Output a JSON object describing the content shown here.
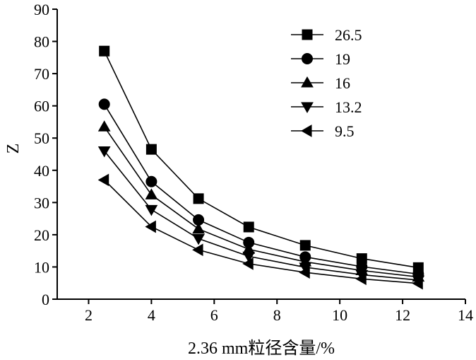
{
  "chart_data": {
    "type": "line",
    "title": "",
    "xlabel": "2.36 mm粒径含量/%",
    "ylabel": "Z",
    "xlim": [
      1,
      14
    ],
    "ylim": [
      0,
      90
    ],
    "xticks": [
      2,
      4,
      6,
      8,
      10,
      12,
      14
    ],
    "yticks": [
      0,
      10,
      20,
      30,
      40,
      50,
      60,
      70,
      80,
      90
    ],
    "grid": false,
    "legend_position": "top-right",
    "x": [
      2.5,
      4.0,
      5.5,
      7.1,
      8.9,
      10.7,
      12.5
    ],
    "series": [
      {
        "name": "26.5",
        "marker": "square",
        "values": [
          77.0,
          46.5,
          31.2,
          22.4,
          16.7,
          12.6,
          9.8
        ]
      },
      {
        "name": "19",
        "marker": "circle",
        "values": [
          60.5,
          36.5,
          24.6,
          17.6,
          13.1,
          10.1,
          7.8
        ]
      },
      {
        "name": "16",
        "marker": "triangle-up",
        "values": [
          53.5,
          32.4,
          21.8,
          15.5,
          11.6,
          8.9,
          6.9
        ]
      },
      {
        "name": "13.2",
        "marker": "triangle-down",
        "values": [
          46.0,
          27.8,
          18.8,
          13.3,
          9.9,
          7.6,
          5.9
        ]
      },
      {
        "name": "9.5",
        "marker": "triangle-left",
        "values": [
          37.0,
          22.5,
          15.3,
          11.0,
          8.3,
          6.3,
          4.9
        ]
      }
    ]
  }
}
